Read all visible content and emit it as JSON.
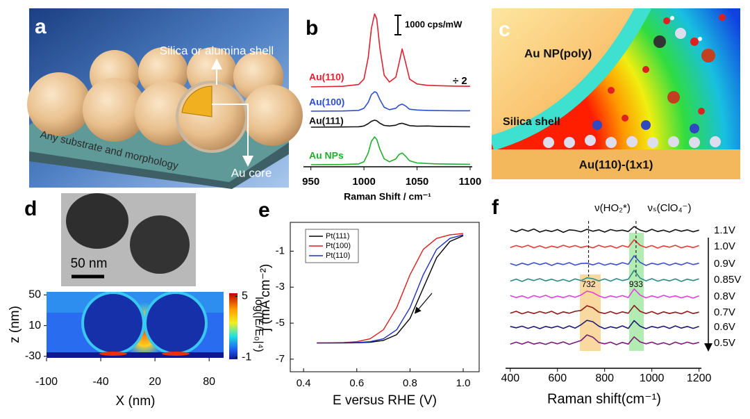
{
  "panel_a": {
    "label": "a",
    "texts": [
      "Silica or alumina shell",
      "Any substrate and morphology",
      "Au core"
    ]
  },
  "panel_c": {
    "label": "c",
    "texts": [
      "Au NP(poly)",
      "Silica shell",
      "Au(110)-(1x1)"
    ]
  },
  "panel_d_tem": {
    "scale_bar": "50 nm"
  },
  "chart_data": [
    {
      "type": "spectra",
      "panel": "b",
      "x": [
        950,
        980,
        995,
        1000,
        1004,
        1007,
        1010,
        1012,
        1015,
        1019,
        1024,
        1030,
        1033,
        1036,
        1039,
        1043,
        1050,
        1060,
        1070,
        1085,
        1100
      ],
      "series": [
        {
          "name": "Au(110)",
          "color": "#e0202e",
          "values": [
            0,
            30,
            120,
            400,
            1500,
            3000,
            3750,
            3500,
            2000,
            600,
            250,
            500,
            1200,
            1950,
            1300,
            400,
            150,
            80,
            60,
            40,
            30
          ]
        },
        {
          "name": "Au(100)",
          "color": "#2a4fd0",
          "values": [
            0,
            10,
            40,
            150,
            450,
            850,
            1000,
            950,
            600,
            200,
            80,
            150,
            300,
            360,
            280,
            100,
            60,
            40,
            30,
            20,
            20
          ]
        },
        {
          "name": "Au(111)",
          "color": "#111111",
          "values": [
            0,
            10,
            20,
            60,
            180,
            300,
            360,
            330,
            200,
            90,
            60,
            100,
            170,
            200,
            150,
            80,
            50,
            60,
            40,
            30,
            20
          ]
        },
        {
          "name": "Au NPs",
          "color": "#1fae2e",
          "values": [
            0,
            10,
            40,
            150,
            600,
            1200,
            1430,
            1300,
            800,
            300,
            150,
            300,
            520,
            600,
            450,
            200,
            90,
            60,
            40,
            30,
            20
          ]
        }
      ],
      "xlim": [
        943,
        1102
      ],
      "xticks": [
        950,
        1000,
        1050,
        1100
      ],
      "xlabel": "Raman Shift / cm⁻¹",
      "scale_bar": {
        "value": 1000,
        "label": "1000 cps/mW"
      },
      "annotation": "÷ 2"
    },
    {
      "type": "heatmap",
      "panel": "d",
      "xlim": [
        -100,
        96
      ],
      "ylim": [
        -32,
        54
      ],
      "xticks": [
        -100,
        -40,
        20,
        80
      ],
      "yticks": [
        50,
        10,
        -30
      ],
      "xlabel": "X (nm)",
      "ylabel": "z (nm)",
      "colorbar": {
        "clim": [
          -1.2,
          5.3
        ],
        "ticks": [
          5,
          -1
        ],
        "label": "log(|E/E₀|⁴)"
      }
    },
    {
      "type": "line",
      "panel": "e",
      "x": [
        0.45,
        0.5,
        0.55,
        0.6,
        0.65,
        0.7,
        0.75,
        0.8,
        0.85,
        0.9,
        0.95,
        1.0
      ],
      "series": [
        {
          "name": "Pt(111)",
          "color": "#000000",
          "values": [
            -6.1,
            -6.1,
            -6.1,
            -6.09,
            -6.06,
            -5.96,
            -5.64,
            -4.74,
            -3.05,
            -1.36,
            -0.46,
            -0.14
          ]
        },
        {
          "name": "Pt(100)",
          "color": "#e01b1b",
          "values": [
            -6.1,
            -6.09,
            -6.08,
            -6.03,
            -5.87,
            -5.37,
            -4.14,
            -2.31,
            -0.9,
            -0.29,
            -0.09,
            -0.02
          ]
        },
        {
          "name": "Pt(110)",
          "color": "#1c2fc4",
          "values": [
            -6.1,
            -6.1,
            -6.09,
            -6.08,
            -6.03,
            -5.87,
            -5.37,
            -4.14,
            -2.31,
            -0.9,
            -0.29,
            -0.09
          ]
        }
      ],
      "xlim": [
        0.35,
        1.06
      ],
      "ylim": [
        -7.7,
        0.6
      ],
      "xticks": [
        0.4,
        0.6,
        0.8,
        {
          "value": 1,
          "label": "1.0"
        }
      ],
      "yticks": [
        -1,
        -3,
        -5,
        -7
      ],
      "xlabel": "E versus RHE (V)",
      "ylabel": "j (mA cm⁻²)",
      "legend": "upper left"
    },
    {
      "type": "spectra",
      "panel": "f",
      "x": [
        400,
        425,
        450,
        475,
        500,
        525,
        550,
        575,
        600,
        625,
        650,
        675,
        700,
        725,
        750,
        775,
        800,
        825,
        850,
        875,
        900,
        925,
        950,
        975,
        1000,
        1025,
        1050,
        1075,
        1100,
        1125,
        1150,
        1175,
        1200
      ],
      "series": [
        {
          "name": "1.1V",
          "color": "#111111",
          "values": [
            0.3,
            -0.4,
            0.5,
            -0.2,
            0.6,
            -0.5,
            0.2,
            -0.3,
            0.4,
            -0.6,
            0.3,
            0.1,
            -0.4,
            0.5,
            -0.2,
            0.3,
            -0.5,
            0.4,
            -0.1,
            0.2,
            -0.3,
            1.5,
            0.2,
            -0.4,
            0.5,
            -0.3,
            0.2,
            -0.5,
            0.4,
            -0.2,
            0.3,
            -0.4,
            0.2
          ]
        },
        {
          "name": "1.0V",
          "color": "#e53935",
          "values": [
            -0.3,
            0.4,
            -0.2,
            0.5,
            -0.4,
            0.3,
            -0.5,
            0.2,
            -0.3,
            0.5,
            -0.2,
            0.4,
            -0.3,
            0.2,
            -0.4,
            0.5,
            -0.2,
            0.3,
            -0.5,
            0.4,
            -0.2,
            2.5,
            0.5,
            -0.3,
            0.4,
            -0.5,
            0.3,
            -0.2,
            0.5,
            -0.4,
            0.2,
            -0.3,
            0.4
          ]
        },
        {
          "name": "0.9V",
          "color": "#3a4fc9",
          "values": [
            0.2,
            -0.5,
            0.3,
            -0.3,
            0.5,
            -0.2,
            0.4,
            -0.5,
            0.3,
            -0.2,
            0.5,
            -0.4,
            0.2,
            0.3,
            -0.3,
            0.4,
            -0.4,
            0.2,
            -0.3,
            0.5,
            -0.1,
            3.0,
            0.6,
            -0.5,
            0.3,
            -0.2,
            0.4,
            -0.4,
            0.3,
            -0.3,
            0.5,
            -0.2,
            0.3
          ]
        },
        {
          "name": "0.85V",
          "color": "#2a8a8a",
          "values": [
            -0.4,
            0.3,
            -0.5,
            0.4,
            -0.2,
            0.5,
            -0.3,
            0.3,
            -0.4,
            0.2,
            -0.5,
            0.4,
            -0.2,
            0.8,
            0.5,
            -0.3,
            0.4,
            -0.4,
            0.5,
            -0.2,
            0.3,
            3.5,
            0.7,
            -0.3,
            0.5,
            -0.4,
            0.2,
            -0.3,
            0.4,
            -0.5,
            0.3,
            -0.2,
            0.4
          ]
        },
        {
          "name": "0.8V",
          "color": "#e040e0",
          "values": [
            0.4,
            -0.3,
            0.3,
            -0.5,
            0.4,
            -0.2,
            0.5,
            -0.4,
            0.2,
            -0.3,
            0.4,
            -0.2,
            0.6,
            2.0,
            1.5,
            0.3,
            -0.4,
            0.3,
            -0.2,
            0.4,
            -0.3,
            2.8,
            0.6,
            -0.4,
            0.3,
            -0.3,
            0.5,
            -0.2,
            0.3,
            -0.4,
            0.2,
            -0.5,
            0.3
          ]
        },
        {
          "name": "0.7V",
          "color": "#8b1a1a",
          "values": [
            -0.2,
            0.5,
            -0.4,
            0.3,
            -0.3,
            0.4,
            -0.2,
            0.5,
            -0.5,
            0.3,
            -0.2,
            0.5,
            0.8,
            2.5,
            1.8,
            0.2,
            -0.3,
            0.4,
            -0.4,
            0.3,
            -0.2,
            2.6,
            0.5,
            -0.3,
            0.4,
            -0.5,
            0.3,
            -0.3,
            0.2,
            -0.4,
            0.5,
            -0.3,
            0.2
          ]
        },
        {
          "name": "0.6V",
          "color": "#1a1a7a",
          "values": [
            0.3,
            -0.2,
            0.4,
            -0.4,
            0.3,
            -0.5,
            0.3,
            -0.2,
            0.4,
            -0.4,
            0.5,
            -0.3,
            0.9,
            2.5,
            2.0,
            0.4,
            -0.5,
            0.2,
            -0.3,
            0.5,
            -0.4,
            2.4,
            0.4,
            -0.5,
            0.3,
            -0.2,
            0.4,
            -0.4,
            0.5,
            -0.3,
            0.3,
            -0.4,
            0.3
          ]
        },
        {
          "name": "0.5V",
          "color": "#7a1a7a",
          "values": [
            -0.3,
            0.4,
            -0.3,
            0.5,
            -0.3,
            0.2,
            -0.4,
            0.4,
            -0.2,
            0.5,
            -0.4,
            0.3,
            1.0,
            3.0,
            2.2,
            0.3,
            -0.2,
            0.4,
            -0.5,
            0.3,
            -0.3,
            2.3,
            0.5,
            -0.2,
            0.4,
            -0.4,
            0.2,
            -0.5,
            0.4,
            -0.3,
            0.4,
            -0.2,
            0.3
          ]
        }
      ],
      "xlim": [
        380,
        1210
      ],
      "xticks": [
        400,
        600,
        800,
        1000,
        1200
      ],
      "xlabel": "Raman shift(cm⁻¹)",
      "annotations": [
        "ν(HO₂*)",
        "νₛ(ClO₄⁻)"
      ],
      "peak_labels": [
        732,
        933
      ]
    }
  ]
}
